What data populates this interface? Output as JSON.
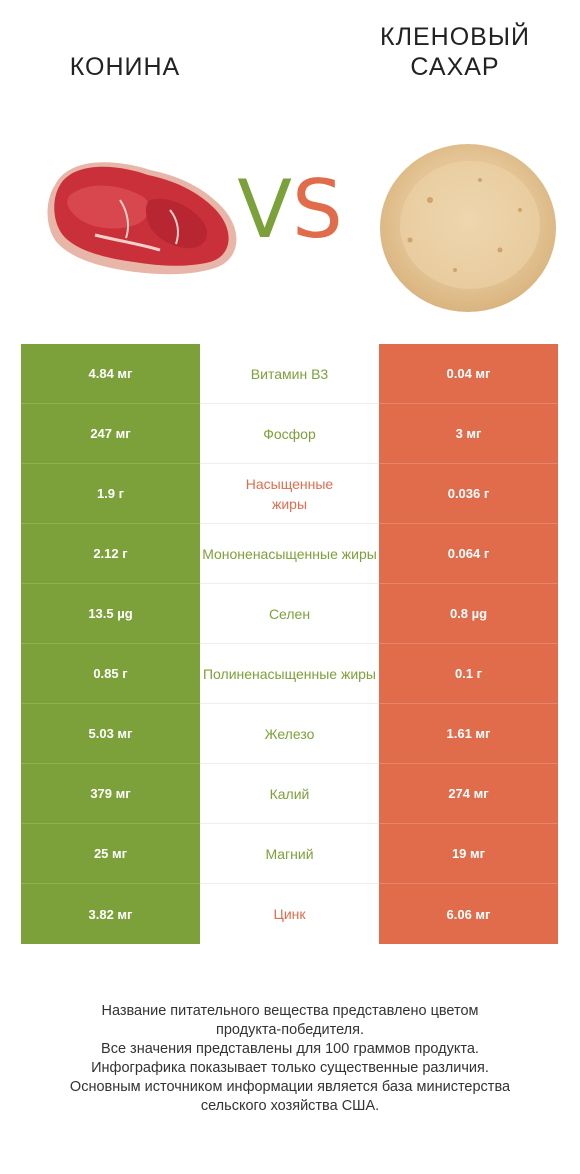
{
  "header": {
    "left_title": "КОНИНА",
    "right_title_line1": "КЛЕНОВЫЙ",
    "right_title_line2": "САХАР",
    "vs_v": "V",
    "vs_s": "S"
  },
  "colors": {
    "left_product": "#7ca13a",
    "right_product": "#e06c4c"
  },
  "rows": [
    {
      "left": "4.84 мг",
      "name": "Витамин B3",
      "right": "0.04 мг",
      "winner": "left"
    },
    {
      "left": "247 мг",
      "name": "Фосфор",
      "right": "3 мг",
      "winner": "left"
    },
    {
      "left": "1.9 г",
      "name": "Насыщенные жиры",
      "right": "0.036 г",
      "winner": "right"
    },
    {
      "left": "2.12 г",
      "name": "Мононенасыщенные жиры",
      "right": "0.064 г",
      "winner": "left"
    },
    {
      "left": "13.5 µg",
      "name": "Селен",
      "right": "0.8 µg",
      "winner": "left"
    },
    {
      "left": "0.85 г",
      "name": "Полиненасыщенные жиры",
      "right": "0.1 г",
      "winner": "left"
    },
    {
      "left": "5.03 мг",
      "name": "Железо",
      "right": "1.61 мг",
      "winner": "left"
    },
    {
      "left": "379 мг",
      "name": "Калий",
      "right": "274 мг",
      "winner": "left"
    },
    {
      "left": "25 мг",
      "name": "Магний",
      "right": "19 мг",
      "winner": "left"
    },
    {
      "left": "3.82 мг",
      "name": "Цинк",
      "right": "6.06 мг",
      "winner": "right"
    }
  ],
  "footer": {
    "line1": "Название питательного вещества представлено цветом",
    "line2": "продукта-победителя.",
    "line3": "Все значения представлены для 100 граммов продукта.",
    "line4": "Инфографика показывает только существенные различия.",
    "line5": "Основным источником информации является база министерства",
    "line6": "сельского хозяйства США."
  },
  "icons": {
    "left_image": "horse-meat-image",
    "right_image": "maple-sugar-image"
  }
}
